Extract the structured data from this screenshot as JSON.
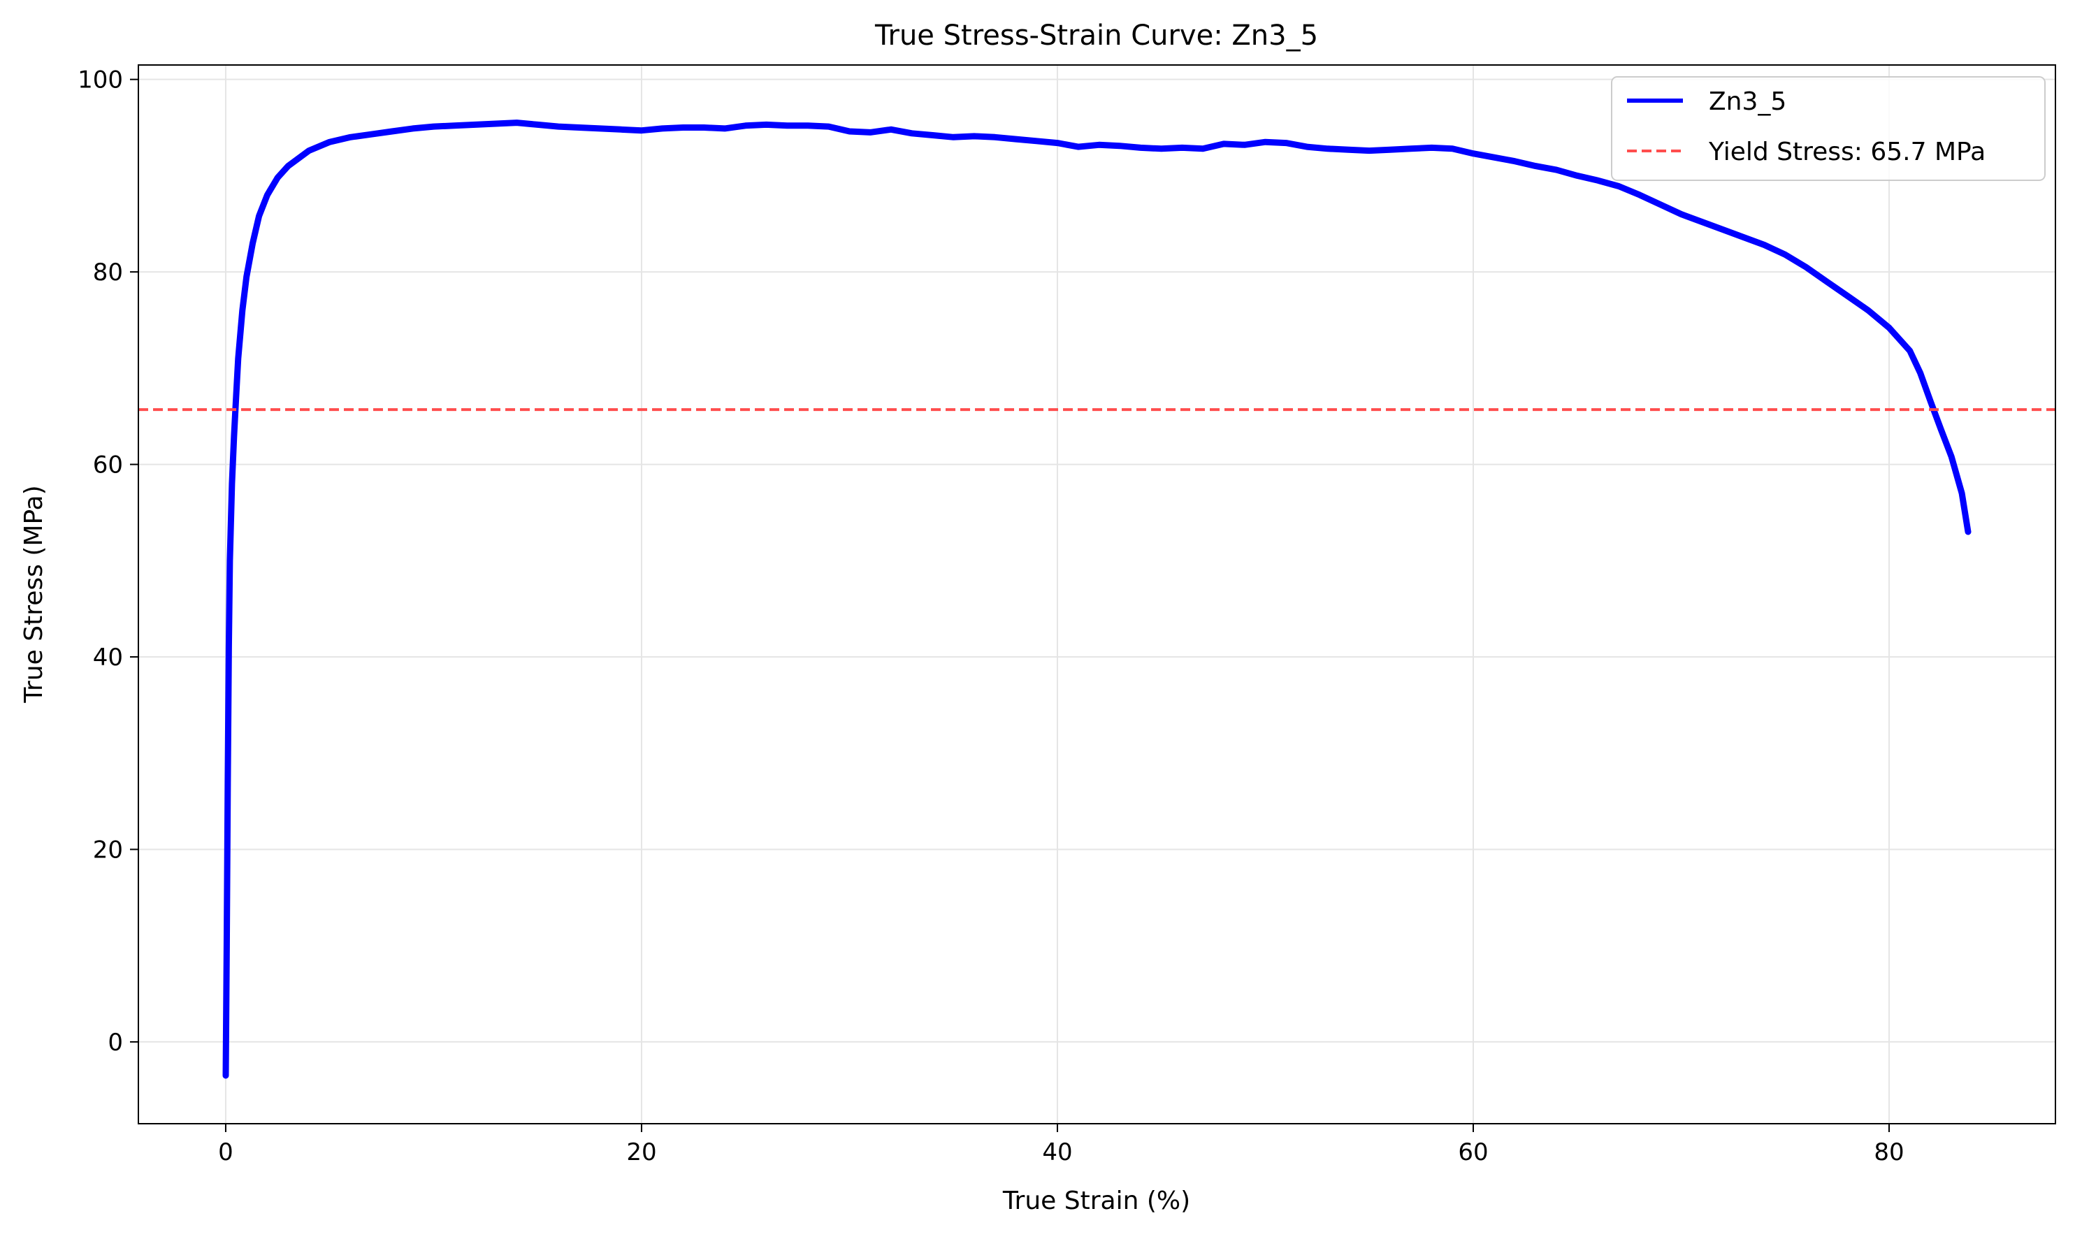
{
  "colors": {
    "series": "#0000ff",
    "yield_line": "#ff4d4d",
    "grid": "#e5e5e5",
    "axis": "#000000",
    "background": "#ffffff"
  },
  "chart_data": {
    "type": "line",
    "title": "True Stress-Strain Curve: Zn3_5",
    "xlabel": "True Strain (%)",
    "ylabel": "True Stress (MPa)",
    "xlim": [
      -4.2,
      88.0
    ],
    "ylim": [
      -8.5,
      101.5
    ],
    "xticks": [
      0,
      20,
      40,
      60,
      80
    ],
    "yticks": [
      0,
      20,
      40,
      60,
      80,
      100
    ],
    "grid": true,
    "legend_position": "top-right",
    "series": [
      {
        "name": "Zn3_5",
        "color": "#0000ff",
        "style": "solid",
        "x": [
          0.0,
          0.05,
          0.1,
          0.15,
          0.2,
          0.3,
          0.4,
          0.5,
          0.6,
          0.8,
          1.0,
          1.3,
          1.6,
          2.0,
          2.5,
          3.0,
          4.0,
          5.0,
          6.0,
          7.0,
          8.0,
          9.0,
          10.0,
          11.0,
          12.0,
          13.0,
          14.0,
          15.0,
          16.0,
          17.0,
          18.0,
          19.0,
          20.0,
          21.0,
          22.0,
          23.0,
          24.0,
          25.0,
          26.0,
          27.0,
          28.0,
          29.0,
          30.0,
          31.0,
          32.0,
          33.0,
          34.0,
          35.0,
          36.0,
          37.0,
          38.0,
          39.0,
          40.0,
          41.0,
          42.0,
          43.0,
          44.0,
          45.0,
          46.0,
          47.0,
          48.0,
          49.0,
          50.0,
          51.0,
          52.0,
          53.0,
          54.0,
          55.0,
          56.0,
          57.0,
          58.0,
          59.0,
          60.0,
          61.0,
          62.0,
          63.0,
          64.0,
          65.0,
          66.0,
          67.0,
          68.0,
          69.0,
          70.0,
          71.0,
          72.0,
          73.0,
          74.0,
          75.0,
          76.0,
          77.0,
          78.0,
          79.0,
          80.0,
          81.0,
          81.5,
          82.0,
          82.5,
          83.0,
          83.5,
          83.8
        ],
        "y": [
          -3.5,
          10.0,
          27.0,
          41.0,
          50.0,
          58.0,
          63.0,
          67.0,
          71.0,
          76.0,
          79.5,
          83.0,
          85.8,
          88.0,
          89.8,
          91.0,
          92.6,
          93.5,
          94.0,
          94.3,
          94.6,
          94.9,
          95.1,
          95.2,
          95.3,
          95.4,
          95.5,
          95.3,
          95.1,
          95.0,
          94.9,
          94.8,
          94.7,
          94.9,
          95.0,
          95.0,
          94.9,
          95.2,
          95.3,
          95.2,
          95.2,
          95.1,
          94.6,
          94.5,
          94.8,
          94.4,
          94.2,
          94.0,
          94.1,
          94.0,
          93.8,
          93.6,
          93.4,
          93.0,
          93.2,
          93.1,
          92.9,
          92.8,
          92.9,
          92.8,
          93.3,
          93.2,
          93.5,
          93.4,
          93.0,
          92.8,
          92.7,
          92.6,
          92.7,
          92.8,
          92.9,
          92.8,
          92.3,
          91.9,
          91.5,
          91.0,
          90.6,
          90.0,
          89.5,
          88.9,
          88.0,
          87.0,
          86.0,
          85.2,
          84.4,
          83.6,
          82.8,
          81.8,
          80.5,
          79.0,
          77.5,
          76.0,
          74.2,
          71.8,
          69.5,
          66.5,
          63.6,
          60.8,
          57.0,
          53.0
        ]
      },
      {
        "name": "Yield Stress: 65.7 MPa",
        "color": "#ff4d4d",
        "style": "dashed",
        "y_constant": 65.7
      }
    ]
  }
}
